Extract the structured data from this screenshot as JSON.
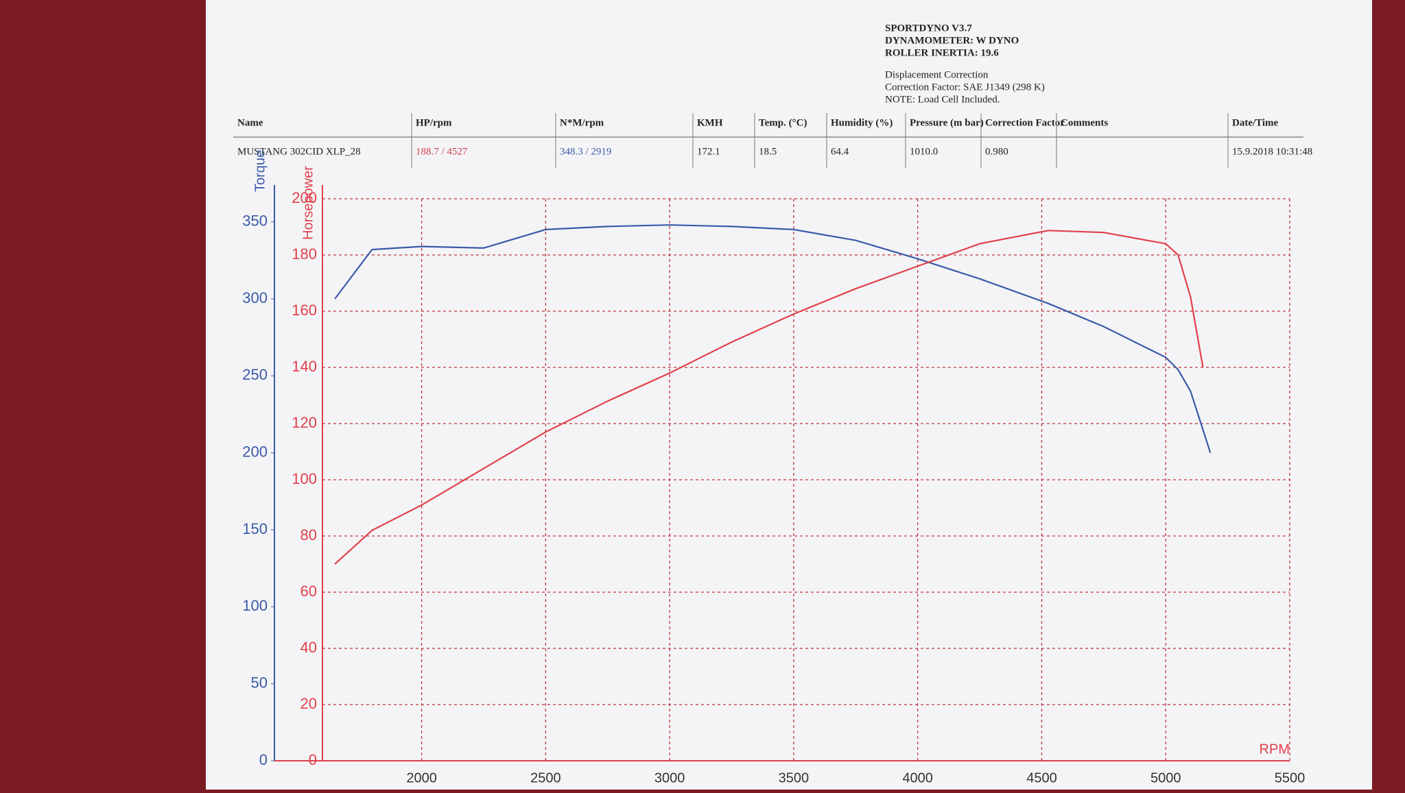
{
  "header": {
    "lines": [
      "SPORTDYNO V3.7",
      "DYNAMOMETER: W DYNO",
      "ROLLER INERTIA: 19.6",
      "Displacement Correction",
      "Correction Factor: SAE J1349 (298 K)",
      "NOTE: Load Cell Included."
    ]
  },
  "table": {
    "columns": [
      "Name",
      "HP/rpm",
      "N*M/rpm",
      "KMH",
      "Temp. (°C)",
      "Humidity (%)",
      "Pressure (m bar)",
      "Correction Factor",
      "Comments",
      "Date/Time"
    ],
    "row": [
      "MUSTANG 302CID XLP_28",
      "188.7 / 4527",
      "348.3 / 2919",
      "172.1",
      "18.5",
      "64.4",
      "1010.0",
      "0.980",
      null,
      "15.9.2018 10:31:48"
    ]
  },
  "chart_data": {
    "type": "line",
    "xlabel": "RPM",
    "x": [
      1650,
      1800,
      2000,
      2250,
      2500,
      2750,
      3000,
      3250,
      3500,
      3750,
      4000,
      4250,
      4527,
      4750,
      5000,
      5050,
      5100,
      5150,
      5180
    ],
    "series": [
      {
        "name": "Torque",
        "color": "#3a5aa8",
        "values": [
          300,
          332,
          334,
          333,
          345,
          347,
          348,
          347,
          345,
          338,
          326,
          313,
          297,
          282,
          262,
          254,
          240,
          215,
          200
        ]
      },
      {
        "name": "Horsepower",
        "color": "#e0404a",
        "axis": "y2",
        "values": [
          70,
          82,
          91,
          104,
          117,
          128,
          138,
          149,
          159,
          168,
          176,
          184,
          188.7,
          188,
          184,
          180,
          165,
          140,
          null
        ]
      }
    ],
    "xlim": [
      1600,
      5500
    ],
    "xticks": [
      2000,
      2500,
      3000,
      3500,
      4000,
      4500,
      5000,
      5500
    ],
    "ylim": [
      0,
      365
    ],
    "yticks": [
      0,
      50,
      100,
      150,
      200,
      250,
      300,
      350
    ],
    "y2lim": [
      0,
      200
    ],
    "y2ticks": [
      0,
      20,
      40,
      60,
      80,
      100,
      120,
      140,
      160,
      180,
      200
    ],
    "grid": true,
    "grid_color": "#c0303a"
  }
}
